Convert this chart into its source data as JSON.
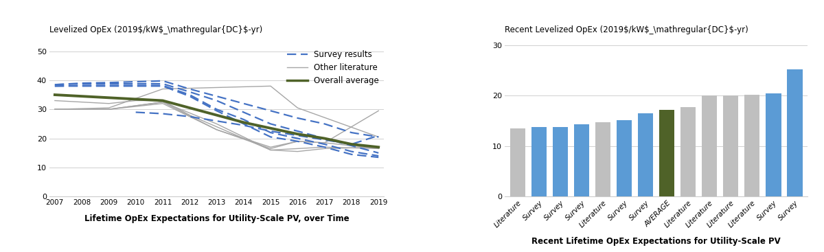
{
  "left_ylabel_plain": "Levelized OpEx (2019$/kW",
  "left_ylabel_sub": "DC",
  "left_ylabel_post": "-yr)",
  "left_xlabel": "Lifetime OpEx Expectations for Utility-Scale PV, over Time",
  "left_ylim": [
    0,
    52
  ],
  "left_yticks": [
    0,
    10,
    20,
    30,
    40,
    50
  ],
  "left_xlim": [
    2007,
    2019
  ],
  "left_xticks": [
    2007,
    2008,
    2009,
    2010,
    2011,
    2012,
    2013,
    2014,
    2015,
    2016,
    2017,
    2018,
    2019
  ],
  "survey_lines": [
    {
      "x": [
        2007,
        2008,
        2009,
        2010,
        2011,
        2012,
        2013,
        2014,
        2015,
        2016,
        2017,
        2018,
        2019
      ],
      "y": [
        38.5,
        39.0,
        39.2,
        39.5,
        39.8,
        37.0,
        34.5,
        32.0,
        29.5,
        27.0,
        25.0,
        22.0,
        20.5
      ]
    },
    {
      "x": [
        2007,
        2008,
        2009,
        2010,
        2011,
        2012,
        2013,
        2014,
        2015,
        2016,
        2017,
        2018,
        2019
      ],
      "y": [
        38.5,
        38.8,
        38.8,
        38.8,
        38.8,
        36.0,
        33.0,
        29.0,
        25.0,
        22.5,
        20.0,
        17.5,
        15.0
      ]
    },
    {
      "x": [
        2007,
        2008,
        2009,
        2010,
        2011,
        2012,
        2013,
        2014,
        2015,
        2016,
        2017,
        2018,
        2019
      ],
      "y": [
        38.0,
        38.2,
        38.2,
        38.2,
        38.2,
        35.0,
        30.0,
        26.5,
        22.0,
        20.0,
        18.0,
        15.5,
        14.0
      ]
    },
    {
      "x": [
        2007,
        2008,
        2009,
        2010,
        2011,
        2012,
        2013,
        2014,
        2015,
        2016,
        2017,
        2018,
        2019
      ],
      "y": [
        38.0,
        38.0,
        38.0,
        38.0,
        38.0,
        34.5,
        29.5,
        25.0,
        20.5,
        19.0,
        17.0,
        14.5,
        13.5
      ]
    },
    {
      "x": [
        2010,
        2011,
        2012,
        2013,
        2014,
        2015,
        2016,
        2017,
        2018,
        2019
      ],
      "y": [
        29.0,
        28.5,
        27.5,
        26.0,
        24.5,
        22.5,
        21.0,
        19.5,
        18.0,
        21.0
      ]
    }
  ],
  "gray_lines": [
    {
      "x": [
        2007,
        2008,
        2009,
        2010,
        2011,
        2012,
        2013,
        2015,
        2016,
        2017,
        2019
      ],
      "y": [
        33.0,
        32.5,
        32.0,
        33.0,
        33.0,
        28.0,
        24.0,
        16.0,
        15.5,
        16.5,
        17.0
      ]
    },
    {
      "x": [
        2007,
        2009,
        2011,
        2013,
        2015,
        2016,
        2019
      ],
      "y": [
        30.0,
        30.5,
        37.0,
        37.5,
        38.0,
        30.5,
        20.5
      ]
    },
    {
      "x": [
        2007,
        2009,
        2011,
        2013,
        2015,
        2016,
        2017,
        2019
      ],
      "y": [
        30.0,
        30.0,
        32.5,
        23.0,
        17.0,
        19.0,
        18.5,
        16.5
      ]
    },
    {
      "x": [
        2007,
        2009,
        2011,
        2013,
        2015,
        2016,
        2017,
        2019
      ],
      "y": [
        30.0,
        30.0,
        32.5,
        25.0,
        16.0,
        16.5,
        17.0,
        16.5
      ]
    },
    {
      "x": [
        2007,
        2009,
        2011,
        2013,
        2015,
        2016,
        2017,
        2019
      ],
      "y": [
        30.0,
        30.0,
        32.0,
        23.0,
        16.5,
        19.0,
        18.5,
        29.5
      ]
    }
  ],
  "overall_avg_x": [
    2007,
    2008,
    2009,
    2010,
    2011,
    2012,
    2013,
    2014,
    2015,
    2016,
    2017,
    2018,
    2019
  ],
  "overall_avg_y": [
    35.0,
    34.5,
    34.0,
    33.5,
    33.0,
    30.5,
    28.0,
    25.5,
    23.5,
    21.5,
    20.0,
    18.0,
    17.0
  ],
  "right_ylabel_plain": "Recent Levelized OpEx (2019$/kW",
  "right_ylabel_sub": "DC",
  "right_ylabel_post": "-yr)",
  "right_xlabel": "Recent Lifetime OpEx Expectations for Utility-Scale PV",
  "right_ylim": [
    0,
    30
  ],
  "right_yticks": [
    0,
    10,
    20,
    30
  ],
  "bar_categories": [
    "Literature",
    "Survey",
    "Survey",
    "Survey",
    "Literature",
    "Survey",
    "Survey",
    "AVERAGE",
    "Literature",
    "Literature",
    "Literature",
    "Literature",
    "Survey",
    "Survey"
  ],
  "bar_values": [
    13.5,
    13.8,
    13.8,
    14.3,
    14.8,
    15.1,
    16.5,
    17.2,
    17.8,
    20.0,
    20.0,
    20.2,
    20.5,
    25.3
  ],
  "bar_colors": [
    "#bfbfbf",
    "#5b9bd5",
    "#5b9bd5",
    "#5b9bd5",
    "#bfbfbf",
    "#5b9bd5",
    "#5b9bd5",
    "#4f6228",
    "#bfbfbf",
    "#bfbfbf",
    "#bfbfbf",
    "#bfbfbf",
    "#5b9bd5",
    "#5b9bd5"
  ],
  "survey_color": "#4472c4",
  "gray_color": "#a6a6a6",
  "green_color": "#4f6228",
  "legend_survey_label": "Survey results",
  "legend_gray_label": "Other literature",
  "legend_green_label": "Overall average"
}
